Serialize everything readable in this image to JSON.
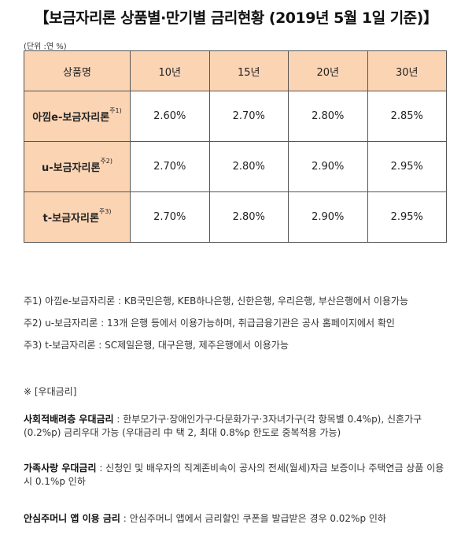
{
  "title": "【보금자리론 상품별·만기별 금리현황 (2019년 5월 1일 기준)】",
  "unit": "(단위 :연 %)",
  "table": {
    "header": [
      "상품명",
      "10년",
      "15년",
      "20년",
      "30년"
    ],
    "rows": [
      {
        "name": "아낌e-보금자리론",
        "sup": "주1)",
        "values": [
          "2.60%",
          "2.70%",
          "2.80%",
          "2.85%"
        ]
      },
      {
        "name": "u-보금자리론",
        "sup": "주2)",
        "values": [
          "2.70%",
          "2.80%",
          "2.90%",
          "2.95%"
        ]
      },
      {
        "name": "t-보금자리론",
        "sup": "주3)",
        "values": [
          "2.70%",
          "2.80%",
          "2.90%",
          "2.95%"
        ]
      }
    ]
  },
  "notes": [
    "주1) 아낌e-보금자리론 : KB국민은행, KEB하나은행, 신한은행, 우리은행, 부산은행에서 이용가능",
    "주2) u-보금자리론 : 13개 은행 등에서 이용가능하며, 취급금융기관은 공사 홈페이지에서 확인",
    "주3) t-보금자리론 : SC제일은행, 대구은행, 제주은행에서 이용가능"
  ],
  "preferential": {
    "header": "※ [우대금리]",
    "items": [
      {
        "label": "사회적배려층 우대금리",
        "text": " : 한부모가구·장애인가구·다문화가구·3자녀가구(각 항목별 0.4%p), 신혼가구(0.2%p) 금리우대 가능 (우대금리 中 택 2, 최대 0.8%p 한도로 중복적용 가능)"
      },
      {
        "label": "가족사랑 우대금리",
        "text": " : 신청인 및 배우자의 직계존비속이 공사의 전세(월세)자금 보증이나 주택연금 상품 이용시 0.1%p 인하"
      },
      {
        "label": "안심주머니 앱 이용 금리",
        "text": " : 안심주머니 앱에서 금리할인 쿠폰을 발급받은 경우 0.02%p 인하"
      }
    ]
  }
}
